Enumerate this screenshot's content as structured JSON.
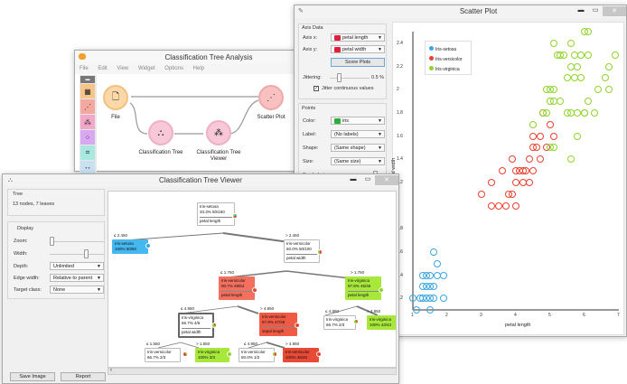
{
  "canvas_window": {
    "title": "Classification Tree Analysis",
    "menu": [
      "File",
      "Edit",
      "View",
      "Widget",
      "Options",
      "Help"
    ],
    "toolbox_colors": [
      "#e8e8e8",
      "#f7c48a",
      "#f4a8a0",
      "#f4a8c8",
      "#d8a8f0",
      "#a8e8e0",
      "#c8e0f0"
    ],
    "widgets": [
      {
        "name": "File",
        "icon": "file-icon",
        "color": "#fbd8a8",
        "ring": "#f4b870"
      },
      {
        "name": "Classification Tree",
        "icon": "tree-icon",
        "color": "#f8c8d8",
        "ring": "#e8a0b8"
      },
      {
        "name": "Classification Tree Viewer",
        "name_line1": "Classification Tree",
        "name_line2": "Viewer",
        "icon": "tree-viewer-icon",
        "color": "#f8c8d8",
        "ring": "#e8a0b8"
      },
      {
        "name": "Scatter Plot",
        "icon": "scatter-icon",
        "color": "#f8c0c0",
        "ring": "#e8a0a0"
      }
    ]
  },
  "scatter_window": {
    "title": "Scatter Plot",
    "axis_data": {
      "title": "Axis Data",
      "axis_x_label": "Axis x:",
      "axis_x_value": "petal length",
      "axis_y_label": "Axis y:",
      "axis_y_value": "petal width",
      "score_button": "Score Plots",
      "jittering_label": "Jittering:",
      "jittering_value": "0.5 %",
      "jitter_checkbox": "Jitter continuous values",
      "jitter_checked": true
    },
    "points": {
      "title": "Points",
      "color_label": "Color:",
      "color_value": "iris",
      "label_label": "Label:",
      "label_value": "(No labels)",
      "shape_label": "Shape:",
      "shape_value": "(Same shape)",
      "size_label": "Size:",
      "size_value": "(Same size)",
      "symbol_size_label": "Symbol size:"
    },
    "legend": [
      {
        "label": "Iris-setosa",
        "color": "#3aa6dd"
      },
      {
        "label": "Iris-versicolor",
        "color": "#e8412f"
      },
      {
        "label": "Iris-virginica",
        "color": "#8fd42a"
      }
    ],
    "xlabel": "petal length",
    "ylabel": "petal width",
    "xticks": [
      "1",
      "2",
      "3",
      "4",
      "5",
      "6",
      "7"
    ],
    "yticks": [
      "0.2",
      "0.4",
      "0.6",
      "0.8",
      "1",
      "1.2",
      "1.4",
      "1.6",
      "1.8",
      "2",
      "2.2",
      "2.4"
    ]
  },
  "chart_data": {
    "type": "scatter",
    "title": "Scatter Plot",
    "xlabel": "petal length",
    "ylabel": "petal width",
    "xlim": [
      1,
      7
    ],
    "ylim": [
      0.1,
      2.5
    ],
    "legend_position": "top-left",
    "series": [
      {
        "name": "Iris-setosa",
        "color": "#3aa6dd",
        "points": [
          [
            1.4,
            0.2
          ],
          [
            1.3,
            0.2
          ],
          [
            1.5,
            0.2
          ],
          [
            1.4,
            0.4
          ],
          [
            1.7,
            0.4
          ],
          [
            1.5,
            0.1
          ],
          [
            1.1,
            0.1
          ],
          [
            1.6,
            0.2
          ],
          [
            1.2,
            0.2
          ],
          [
            1.7,
            0.5
          ],
          [
            1.9,
            0.2
          ],
          [
            1.6,
            0.6
          ],
          [
            1.5,
            0.4
          ],
          [
            1.9,
            0.4
          ],
          [
            1.3,
            0.3
          ],
          [
            1.6,
            0.3
          ],
          [
            1.4,
            0.3
          ],
          [
            1.0,
            0.2
          ],
          [
            1.5,
            0.3
          ],
          [
            1.3,
            0.4
          ]
        ]
      },
      {
        "name": "Iris-versicolor",
        "color": "#e8412f",
        "points": [
          [
            3.0,
            1.1
          ],
          [
            3.3,
            1.0
          ],
          [
            3.5,
            1.0
          ],
          [
            3.7,
            1.0
          ],
          [
            4.0,
            1.0
          ],
          [
            3.8,
            1.1
          ],
          [
            3.9,
            1.1
          ],
          [
            4.0,
            1.3
          ],
          [
            3.9,
            1.4
          ],
          [
            4.1,
            1.3
          ],
          [
            3.6,
            1.3
          ],
          [
            4.4,
            1.4
          ],
          [
            4.5,
            1.5
          ],
          [
            4.7,
            1.4
          ],
          [
            4.9,
            1.5
          ],
          [
            4.5,
            1.3
          ],
          [
            4.2,
            1.3
          ],
          [
            4.6,
            1.5
          ],
          [
            4.4,
            1.2
          ],
          [
            4.7,
            1.6
          ],
          [
            5.0,
            1.7
          ],
          [
            4.8,
            1.8
          ],
          [
            4.5,
            1.6
          ],
          [
            5.1,
            1.6
          ],
          [
            4.3,
            1.3
          ],
          [
            3.3,
            1.2
          ],
          [
            4.0,
            1.2
          ],
          [
            4.2,
            1.2
          ]
        ]
      },
      {
        "name": "Iris-virginica",
        "color": "#8fd42a",
        "points": [
          [
            6.0,
            2.5
          ],
          [
            5.1,
            1.9
          ],
          [
            5.9,
            2.1
          ],
          [
            5.6,
            1.8
          ],
          [
            5.8,
            2.2
          ],
          [
            6.6,
            2.1
          ],
          [
            4.5,
            1.7
          ],
          [
            6.3,
            1.8
          ],
          [
            5.8,
            1.8
          ],
          [
            6.1,
            2.5
          ],
          [
            5.1,
            2.0
          ],
          [
            5.3,
            1.9
          ],
          [
            5.5,
            2.1
          ],
          [
            5.0,
            2.0
          ],
          [
            5.1,
            2.4
          ],
          [
            5.3,
            2.3
          ],
          [
            5.5,
            1.8
          ],
          [
            6.7,
            2.2
          ],
          [
            6.9,
            2.3
          ],
          [
            5.0,
            1.5
          ],
          [
            5.7,
            2.3
          ],
          [
            4.9,
            2.0
          ],
          [
            6.7,
            2.0
          ],
          [
            4.9,
            1.8
          ],
          [
            5.7,
            2.1
          ],
          [
            6.0,
            1.8
          ],
          [
            4.8,
            1.8
          ],
          [
            5.6,
            2.4
          ],
          [
            5.8,
            1.6
          ],
          [
            6.1,
            1.9
          ],
          [
            6.4,
            2.0
          ],
          [
            5.6,
            2.2
          ],
          [
            5.1,
            1.5
          ],
          [
            5.6,
            1.4
          ],
          [
            6.1,
            2.3
          ],
          [
            5.4,
            2.3
          ],
          [
            6.0,
            1.8
          ],
          [
            5.2,
            2.3
          ],
          [
            5.0,
            1.9
          ],
          [
            5.9,
            2.3
          ]
        ]
      }
    ]
  },
  "tree_window": {
    "title": "Classification Tree Viewer",
    "tree_box": {
      "title": "Tree",
      "info": "13 nodes, 7 leaves"
    },
    "display_box": {
      "title": "Display",
      "zoom_label": "Zoom:",
      "width_label": "Width:",
      "depth_label": "Depth:",
      "depth_value": "Unlimited",
      "edge_label": "Edge width:",
      "edge_value": "Relative to parent",
      "target_label": "Target class:",
      "target_value": "None"
    },
    "save_button": "Save Image",
    "report_button": "Report",
    "nodes": [
      {
        "id": "root",
        "cls": "Iris-setosa",
        "stat": "33.3% 50/150",
        "split": "petal length",
        "bg": "#ffffff"
      },
      {
        "id": "n1",
        "edge": "≤ 2.450",
        "cls": "Iris-setosa",
        "stat": "100% 50/50",
        "bg": "#45b8f0"
      },
      {
        "id": "n2",
        "edge": "> 2.450",
        "cls": "Iris-versicolor",
        "stat": "50.0% 50/100",
        "split": "petal width",
        "bg": "#ffffff"
      },
      {
        "id": "n3",
        "edge": "≤ 1.750",
        "cls": "Iris-versicolor",
        "stat": "90.7% 49/54",
        "split": "petal length",
        "bg": "#f4705e"
      },
      {
        "id": "n4",
        "edge": "> 1.750",
        "cls": "Iris-virginica",
        "stat": "97.8% 45/46",
        "split": "petal length",
        "bg": "#a8e83a"
      },
      {
        "id": "n5",
        "edge": "≤ 4.950",
        "cls": "Iris-virginica",
        "stat": "66.7% 4/6",
        "split": "petal width",
        "bg": "#ffffff"
      },
      {
        "id": "n6",
        "edge": "> 4.950",
        "cls": "Iris-versicolor",
        "stat": "97.9% 47/48",
        "split": "sepal length",
        "bg": "#f05a45"
      },
      {
        "id": "n7",
        "edge": "≤ 4.850",
        "cls": "Iris-virginica",
        "stat": "66.7% 2/3",
        "bg": "#ffffff"
      },
      {
        "id": "n8",
        "edge": "> 4.850",
        "cls": "Iris-virginica",
        "stat": "100% 43/43",
        "bg": "#a8e83a"
      },
      {
        "id": "n9",
        "edge": "≤ 1.550",
        "cls": "Iris-versicolor",
        "stat": "66.7% 2/3",
        "bg": "#ffffff"
      },
      {
        "id": "n10",
        "edge": "> 1.550",
        "cls": "Iris-virginica",
        "stat": "100% 3/3",
        "bg": "#a8e83a"
      },
      {
        "id": "n11",
        "edge": "≤ 4.950",
        "cls": "Iris-versicolor",
        "stat": "50.0% 1/2",
        "bg": "#ffffff"
      },
      {
        "id": "n12",
        "edge": "> 4.950",
        "cls": "Iris-versicolor",
        "stat": "100% 46/46",
        "bg": "#e84a35"
      }
    ]
  }
}
